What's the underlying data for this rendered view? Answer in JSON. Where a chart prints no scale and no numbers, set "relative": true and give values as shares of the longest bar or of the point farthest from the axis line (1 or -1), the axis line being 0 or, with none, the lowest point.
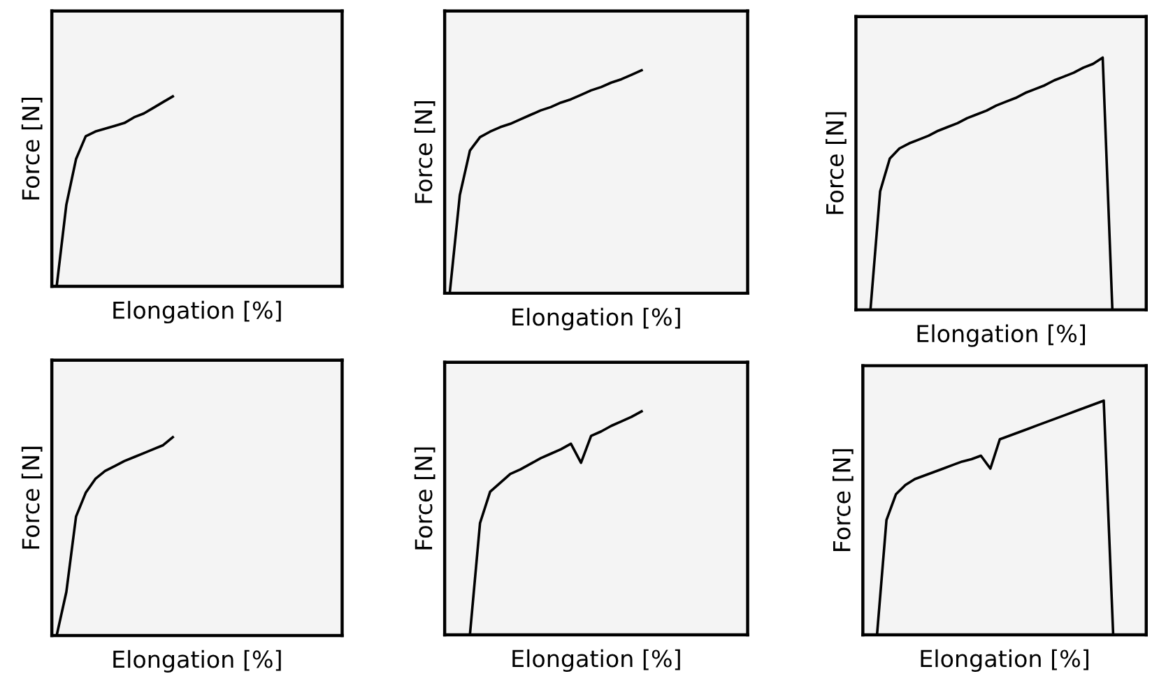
{
  "chart_data": [
    {
      "type": "line",
      "relative": true,
      "xlabel": "Elongation [%]",
      "ylabel": "Force [N]",
      "line_style": "solid",
      "categories": [
        null,
        null,
        null,
        null,
        null,
        null,
        null,
        null,
        null,
        null,
        null,
        null,
        null,
        null,
        null,
        null,
        null,
        null,
        null,
        null,
        null,
        null,
        null,
        null,
        null,
        null,
        null,
        null,
        null,
        null
      ],
      "series": [
        {
          "color": "#000000",
          "values": [
            0,
            0.43,
            0.67,
            0.79,
            0.815,
            0.83,
            0.845,
            0.86,
            0.89,
            0.91,
            0.94,
            0.97,
            1,
            null,
            null,
            null,
            null,
            null,
            null,
            null,
            null,
            null,
            null,
            null,
            null,
            null,
            null,
            null,
            null,
            null
          ]
        }
      ]
    },
    {
      "type": "line",
      "relative": true,
      "xlabel": "Elongation [%]",
      "ylabel": "Force [N]",
      "line_style": "solid",
      "categories": [
        null,
        null,
        null,
        null,
        null,
        null,
        null,
        null,
        null,
        null,
        null,
        null,
        null,
        null,
        null,
        null,
        null,
        null,
        null,
        null,
        null,
        null,
        null,
        null,
        null,
        null,
        null,
        null,
        null,
        null
      ],
      "series": [
        {
          "color": "#000000",
          "values": [
            0,
            0.44,
            0.64,
            0.7,
            0.725,
            0.745,
            0.76,
            0.78,
            0.8,
            0.82,
            0.835,
            0.855,
            0.87,
            0.89,
            0.91,
            0.925,
            0.945,
            0.96,
            0.98,
            1,
            null,
            null,
            null,
            null,
            null,
            null,
            null,
            null,
            null,
            null
          ]
        }
      ]
    },
    {
      "type": "line",
      "relative": true,
      "xlabel": "Elongation [%]",
      "ylabel": "Force [N]",
      "line_style": "solid",
      "categories": [
        null,
        null,
        null,
        null,
        null,
        null,
        null,
        null,
        null,
        null,
        null,
        null,
        null,
        null,
        null,
        null,
        null,
        null,
        null,
        null,
        null,
        null,
        null,
        null,
        null,
        null,
        null,
        null,
        null,
        null
      ],
      "series": [
        {
          "color": "#000000",
          "values": [
            null,
            0,
            0.47,
            0.6,
            0.64,
            0.66,
            0.675,
            0.69,
            0.71,
            0.725,
            0.74,
            0.76,
            0.775,
            0.79,
            0.81,
            0.825,
            0.84,
            0.86,
            0.875,
            0.89,
            0.91,
            0.925,
            0.94,
            0.96,
            0.975,
            1,
            0,
            null,
            null,
            null
          ]
        }
      ]
    },
    {
      "type": "line",
      "relative": true,
      "xlabel": "Elongation [%]",
      "ylabel": "Force [N]",
      "line_style": "solid",
      "categories": [
        null,
        null,
        null,
        null,
        null,
        null,
        null,
        null,
        null,
        null,
        null,
        null,
        null,
        null,
        null,
        null,
        null,
        null,
        null,
        null,
        null,
        null,
        null,
        null,
        null,
        null,
        null,
        null,
        null,
        null
      ],
      "series": [
        {
          "color": "#000000",
          "values": [
            0,
            0.22,
            0.6,
            0.72,
            0.79,
            0.83,
            0.855,
            0.88,
            0.9,
            0.92,
            0.94,
            0.96,
            1,
            null,
            null,
            null,
            null,
            null,
            null,
            null,
            null,
            null,
            null,
            null,
            null,
            null,
            null,
            null,
            null,
            null
          ]
        }
      ]
    },
    {
      "type": "line",
      "relative": true,
      "xlabel": "Elongation [%]",
      "ylabel": "Force [N]",
      "line_style": "solid",
      "categories": [
        null,
        null,
        null,
        null,
        null,
        null,
        null,
        null,
        null,
        null,
        null,
        null,
        null,
        null,
        null,
        null,
        null,
        null,
        null,
        null,
        null,
        null,
        null,
        null,
        null,
        null,
        null,
        null,
        null,
        null
      ],
      "series": [
        {
          "color": "#000000",
          "values": [
            null,
            null,
            0,
            0.5,
            0.64,
            0.68,
            0.72,
            0.74,
            0.765,
            0.79,
            0.81,
            0.83,
            0.855,
            0.77,
            0.89,
            0.91,
            0.935,
            0.955,
            0.975,
            1,
            null,
            null,
            null,
            null,
            null,
            null,
            null,
            null,
            null,
            null
          ]
        }
      ]
    },
    {
      "type": "line",
      "relative": true,
      "xlabel": "Elongation [%]",
      "ylabel": "Force [N]",
      "line_style": "solid",
      "categories": [
        null,
        null,
        null,
        null,
        null,
        null,
        null,
        null,
        null,
        null,
        null,
        null,
        null,
        null,
        null,
        null,
        null,
        null,
        null,
        null,
        null,
        null,
        null,
        null,
        null,
        null,
        null,
        null,
        null,
        null
      ],
      "series": [
        {
          "color": "#000000",
          "values": [
            null,
            0,
            0.49,
            0.6,
            0.64,
            0.665,
            0.68,
            0.695,
            0.71,
            0.725,
            0.74,
            0.75,
            0.765,
            0.71,
            0.835,
            0.85,
            0.865,
            0.88,
            0.895,
            0.91,
            0.925,
            0.94,
            0.955,
            0.97,
            0.985,
            1,
            0,
            null,
            null,
            null
          ]
        }
      ]
    }
  ]
}
